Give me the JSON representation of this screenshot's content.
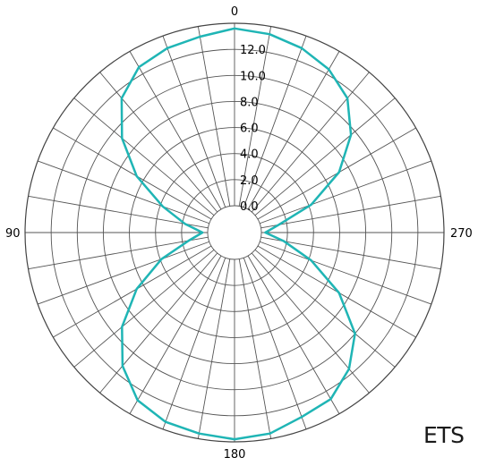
{
  "watermark_text": "ETS",
  "chart_data": {
    "type": "polar-line",
    "radial_ticks": [
      "0.0",
      "2.0",
      "4.0",
      "6.0",
      "8.0",
      "10.0",
      "12.0"
    ],
    "rmax": 14,
    "angle_labels": [
      "0",
      "90",
      "180",
      "270"
    ],
    "angle_direction": "counterclockwise",
    "zero_location": "top",
    "grid": true,
    "spoke_step_deg": 10,
    "line_color": "#1fb5b5",
    "series": [
      {
        "theta_deg": [
          0,
          10,
          20,
          30,
          40,
          50,
          60,
          70,
          80,
          90,
          100,
          110,
          120,
          130,
          140,
          150,
          160,
          170,
          180,
          190,
          200,
          210,
          220,
          230,
          240,
          250,
          260,
          270,
          280,
          290,
          300,
          310,
          320,
          330,
          340,
          350
        ],
        "r": [
          13.6,
          13.2,
          13.0,
          12.6,
          11.4,
          9.2,
          6.6,
          3.8,
          1.8,
          0.4,
          1.5,
          3.9,
          6.6,
          9.2,
          11.3,
          12.8,
          13.4,
          13.6,
          13.8,
          13.6,
          13.0,
          12.7,
          11.6,
          10.0,
          7.2,
          4.2,
          1.8,
          0.3,
          1.4,
          4.2,
          7.2,
          9.6,
          11.4,
          12.4,
          13.0,
          13.4
        ]
      }
    ]
  }
}
